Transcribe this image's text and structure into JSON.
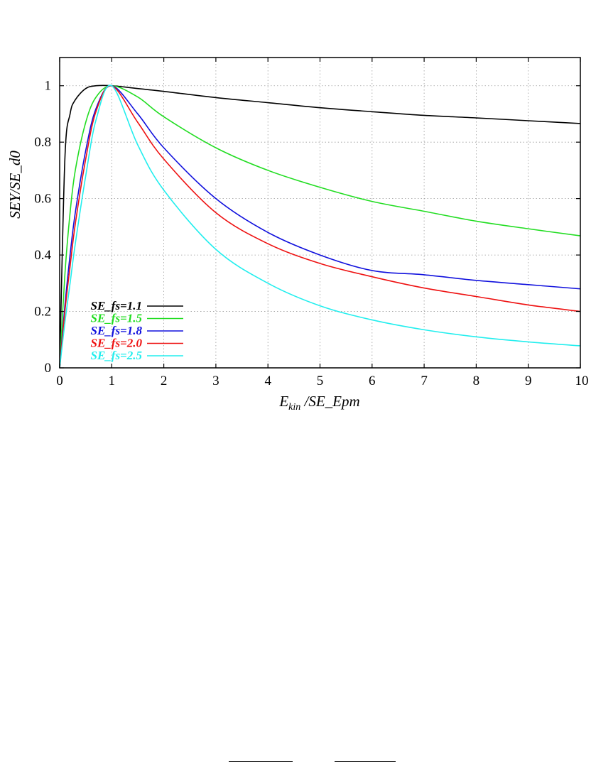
{
  "chart_data": {
    "type": "line",
    "title": "",
    "xlabel": {
      "main": "E",
      "subscript": "kin",
      "rest": " /SE_Epm"
    },
    "ylabel": "SEY/SE_d0",
    "xlim": [
      0,
      10
    ],
    "ylim": [
      0,
      1.1
    ],
    "x_ticks": [
      0,
      1,
      2,
      3,
      4,
      5,
      6,
      7,
      8,
      9,
      10
    ],
    "x_tick_labels": [
      "0",
      "1",
      "2",
      "3",
      "4",
      "5",
      "6",
      "7",
      "8",
      "9",
      "10"
    ],
    "y_ticks": [
      0,
      0.2,
      0.4,
      0.6,
      0.8,
      1
    ],
    "y_tick_labels": [
      "0",
      "0.2",
      "0.4",
      "0.6",
      "0.8",
      "1"
    ],
    "grid": true,
    "legend_position": "bottom-left",
    "x": [
      0,
      0.1,
      0.2,
      0.3,
      0.5,
      0.7,
      1,
      1.5,
      2,
      3,
      4,
      5,
      6,
      7,
      8,
      9,
      10
    ],
    "series": [
      {
        "name": "SE_fs=1.1",
        "color": "#000000",
        "values": [
          0,
          0.74,
          0.9,
          0.95,
          0.99,
          1.0,
          1.0,
          0.99,
          0.98,
          0.958,
          0.94,
          0.922,
          0.908,
          0.895,
          0.886,
          0.876,
          0.866
        ]
      },
      {
        "name": "SE_fs=1.5",
        "color": "#22dd22",
        "values": [
          0,
          0.33,
          0.55,
          0.7,
          0.87,
          0.96,
          1.0,
          0.96,
          0.89,
          0.78,
          0.7,
          0.64,
          0.59,
          0.555,
          0.52,
          0.493,
          0.468
        ]
      },
      {
        "name": "SE_fs=1.8",
        "color": "#1010dd",
        "values": [
          0,
          0.22,
          0.4,
          0.55,
          0.77,
          0.92,
          1.0,
          0.9,
          0.78,
          0.6,
          0.48,
          0.4,
          0.345,
          0.33,
          0.31,
          0.295,
          0.28
        ]
      },
      {
        "name": "SE_fs=2.0",
        "color": "#ee1111",
        "values": [
          0,
          0.2,
          0.36,
          0.51,
          0.74,
          0.91,
          1.0,
          0.87,
          0.74,
          0.55,
          0.44,
          0.37,
          0.323,
          0.283,
          0.253,
          0.223,
          0.2
        ]
      },
      {
        "name": "SE_fs=2.5",
        "color": "#22eeee",
        "values": [
          0,
          0.16,
          0.3,
          0.44,
          0.68,
          0.88,
          1.0,
          0.79,
          0.63,
          0.42,
          0.3,
          0.22,
          0.17,
          0.135,
          0.11,
          0.092,
          0.078
        ]
      }
    ]
  }
}
